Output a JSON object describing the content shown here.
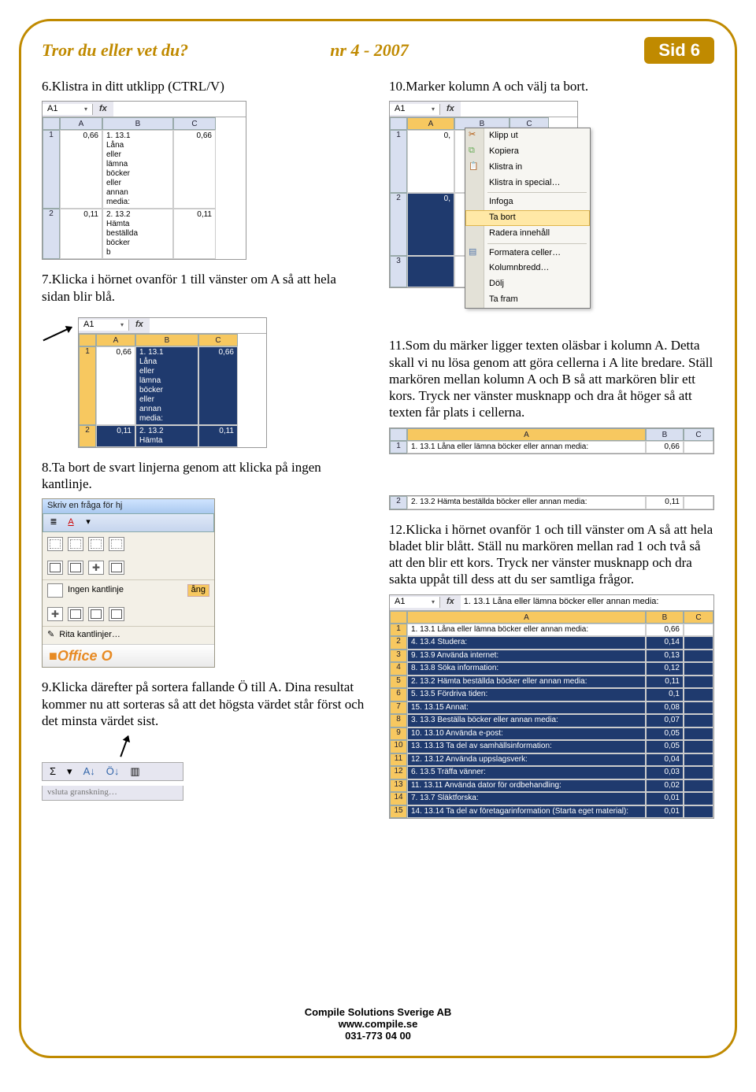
{
  "frame_border_color": "#c08a00",
  "header": {
    "left": "Tror du eller vet du?",
    "mid": "nr 4 - 2007",
    "right": "Sid 6",
    "badge_bg": "#c08a00",
    "text_color": "#c08a00"
  },
  "left_steps": {
    "s6": "6.Klistra in ditt utklipp (CTRL/V)",
    "s7": "7.Klicka i hörnet ovanför 1 till vänster om A så att hela sidan blir blå.",
    "s8": "8.Ta bort de svart linjerna genom att klicka på ingen kantlinje.",
    "s9": "9.Klicka därefter på sortera fallande Ö till A. Dina resultat kommer nu att sorteras så att det högsta värdet står först och det minsta värdet sist."
  },
  "right_steps": {
    "s10": "10.Marker kolumn A och välj ta bort.",
    "s11": "11.Som du märker ligger texten oläsbar i kolumn A. Detta skall vi nu lösa genom att göra cellerna i A lite bredare. Ställ markören mellan kolumn A och B så att markören blir ett kors. Tryck ner vänster musknapp och dra åt höger så att texten får plats i cellerna.",
    "s12": "12.Klicka i hörnet ovanför 1 och till vänster om A så att hela bladet blir blått. Ställ nu markören mellan rad 1 och två så att den blir ett kors. Tryck ner vänster musknapp och dra sakta uppåt till dess att du ser samtliga frågor."
  },
  "excel6": {
    "namebox": "A1",
    "cols": [
      "A",
      "B",
      "C"
    ],
    "rows": [
      {
        "n": "1",
        "a": "0,66",
        "b": "1. 13.1\nLåna\neller\nlämna\nböcker\neller\nannan\nmedia:",
        "c": "0,66"
      },
      {
        "n": "2",
        "a": "0,11",
        "b": "2. 13.2\nHämta\nbeställda\nböcker\nb",
        "c": "0,11"
      }
    ],
    "header_bg": "#d8dff0",
    "border_color": "#9aa"
  },
  "excel7": {
    "namebox": "A1",
    "cols": [
      "A",
      "B",
      "C"
    ],
    "rows": [
      {
        "n": "1",
        "a": "0,66",
        "b": "1. 13.1\nLåna\neller\nlämna\nböcker\neller\nannan\nmedia:",
        "c": "0,66"
      },
      {
        "n": "2",
        "a": "0,11",
        "b": "2. 13.2\nHämta",
        "c": "0,11"
      }
    ],
    "selected_bg": "#1f3a6e"
  },
  "context_menu": {
    "items": [
      {
        "label": "Klipp ut",
        "icon": "scissors"
      },
      {
        "label": "Kopiera",
        "icon": "copy"
      },
      {
        "label": "Klistra in",
        "icon": "paste"
      },
      {
        "label": "Klistra in special…",
        "icon": ""
      },
      {
        "sep": true
      },
      {
        "label": "Infoga",
        "icon": ""
      },
      {
        "label": "Ta bort",
        "icon": "",
        "hl": true
      },
      {
        "label": "Radera innehåll",
        "icon": ""
      },
      {
        "sep": true
      },
      {
        "label": "Formatera celler…",
        "icon": "format"
      },
      {
        "label": "Kolumnbredd…",
        "icon": ""
      },
      {
        "label": "Dölj",
        "icon": ""
      },
      {
        "label": "Ta fram",
        "icon": ""
      }
    ],
    "hl_bg": "#ffe8a6",
    "hl_border": "#e0b64a"
  },
  "excel10": {
    "namebox": "A1",
    "behind_cols": [
      "A",
      "B",
      "C"
    ],
    "rows": [
      {
        "n": "1",
        "a": "0,"
      },
      {
        "n": "2",
        "a": "0,"
      },
      {
        "n": "3",
        "a": ""
      }
    ]
  },
  "excel11a": {
    "cols": [
      "A",
      "B",
      "C"
    ],
    "row1": {
      "n": "1",
      "a": "1. 13.1 Låna eller lämna böcker eller annan media:",
      "b": "0,66",
      "c": ""
    }
  },
  "excel11b": {
    "row2": {
      "n": "2",
      "a": "2. 13.2 Hämta beställda böcker eller annan media:",
      "b": "0,11",
      "c": ""
    }
  },
  "borders_popup": {
    "title": "Skriv en fråga för hj",
    "none_label": "Ingen kantlinje",
    "draw_label": "Rita kantlinjer…",
    "tab_behind": "ång",
    "office": "Office O"
  },
  "sort_toolbar": {
    "sigma": "Σ",
    "sort_asc": "A↓",
    "sort_desc": "Ö↓",
    "chart": "▥",
    "status": "vsluta granskning…"
  },
  "excel12": {
    "namebox": "A1",
    "fx": "1. 13.1 Låna eller lämna böcker eller annan media:",
    "cols": [
      "A",
      "B",
      "C"
    ],
    "rows": [
      {
        "n": "1",
        "a": "1. 13.1 Låna eller lämna böcker eller annan media:",
        "b": "0,66"
      },
      {
        "n": "2",
        "a": "4. 13.4 Studera:",
        "b": "0,14"
      },
      {
        "n": "3",
        "a": "9. 13.9 Använda internet:",
        "b": "0,13"
      },
      {
        "n": "4",
        "a": "8. 13.8 Söka information:",
        "b": "0,12"
      },
      {
        "n": "5",
        "a": "2. 13.2 Hämta beställda böcker eller annan media:",
        "b": "0,11"
      },
      {
        "n": "6",
        "a": "5. 13.5 Fördriva tiden:",
        "b": "0,1"
      },
      {
        "n": "7",
        "a": "15. 13.15 Annat:",
        "b": "0,08"
      },
      {
        "n": "8",
        "a": "3. 13.3 Beställa böcker eller annan media:",
        "b": "0,07"
      },
      {
        "n": "9",
        "a": "10. 13.10 Använda e-post:",
        "b": "0,05"
      },
      {
        "n": "10",
        "a": "13. 13.13 Ta del av samhällsinformation:",
        "b": "0,05"
      },
      {
        "n": "11",
        "a": "12. 13.12 Använda uppslagsverk:",
        "b": "0,04"
      },
      {
        "n": "12",
        "a": "6. 13.5 Träffa vänner:",
        "b": "0,03"
      },
      {
        "n": "13",
        "a": "11. 13.11 Använda dator för ordbehandling:",
        "b": "0,02"
      },
      {
        "n": "14",
        "a": "7. 13.7 Släktforska:",
        "b": "0,01"
      },
      {
        "n": "15",
        "a": "14. 13.14 Ta del av företagarinformation (Starta eget material):",
        "b": "0,01"
      }
    ],
    "sel_row_bg": "#f7c860"
  },
  "footer": {
    "l1": "Compile Solutions Sverige AB",
    "l2": "www.compile.se",
    "l3": "031-773 04 00"
  },
  "palette": {
    "excel_header_bg": "#d8dff0",
    "excel_sel_header": "#f7c860",
    "excel_sel_cell": "#1f3a6e",
    "menu_bg": "#f7f6f2",
    "menu_strip": "#e3e1d7"
  }
}
